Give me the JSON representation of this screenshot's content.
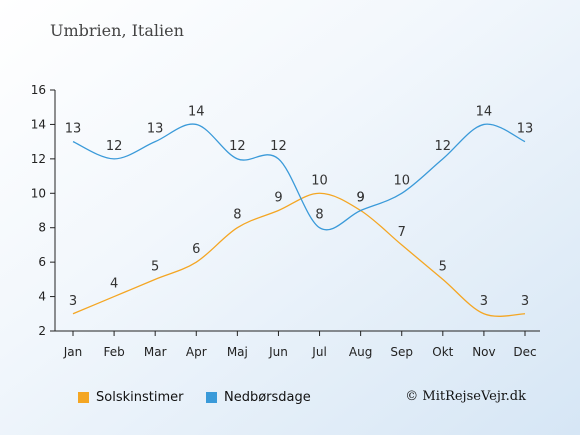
{
  "header": {
    "title": "Umbrien, Italien"
  },
  "chart_data": {
    "type": "line",
    "categories": [
      "Jan",
      "Feb",
      "Mar",
      "Apr",
      "Maj",
      "Jun",
      "Jul",
      "Aug",
      "Sep",
      "Okt",
      "Nov",
      "Dec"
    ],
    "series": [
      {
        "name": "Solskinstimer",
        "color": "#f4a623",
        "values": [
          3,
          4,
          5,
          6,
          8,
          9,
          10,
          9,
          7,
          5,
          3,
          3
        ]
      },
      {
        "name": "Nedbørsdage",
        "color": "#3a9ad9",
        "values": [
          13,
          12,
          13,
          14,
          12,
          12,
          8,
          9,
          10,
          12,
          14,
          13
        ]
      }
    ],
    "yticks": [
      2,
      4,
      6,
      8,
      10,
      12,
      14,
      16
    ],
    "ylim": [
      2,
      16
    ],
    "grid": false,
    "legend_position": "bottom-left"
  },
  "legend": {
    "items": [
      {
        "label": "Solskinstimer",
        "color": "#f4a623"
      },
      {
        "label": "Nedbørsdage",
        "color": "#3a9ad9"
      }
    ]
  },
  "footer": {
    "credit": "© MitRejseVejr.dk"
  }
}
